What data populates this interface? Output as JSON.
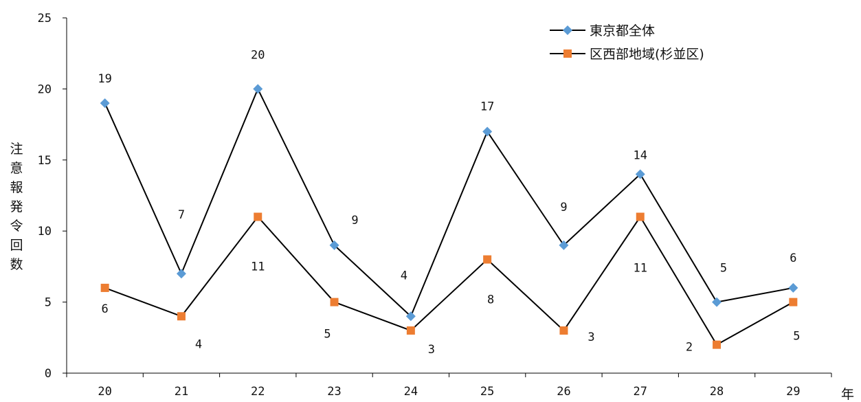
{
  "chart_data": {
    "type": "line",
    "title": "",
    "xlabel": "",
    "x_unit": "年",
    "ylabel": "注意報発令回数",
    "ylim": [
      0,
      25
    ],
    "yticks": [
      0,
      5,
      10,
      15,
      20,
      25
    ],
    "grid": false,
    "legend_position": "top-right",
    "categories": [
      "20",
      "21",
      "22",
      "23",
      "24",
      "25",
      "26",
      "27",
      "28",
      "29"
    ],
    "series": [
      {
        "name": "東京都全体",
        "values": [
          19,
          7,
          20,
          9,
          4,
          17,
          9,
          14,
          5,
          6
        ],
        "marker": "diamond",
        "marker_color": "#5B9BD5",
        "line_color": "#000000",
        "label_position": "above"
      },
      {
        "name": "区西部地域(杉並区)",
        "values": [
          6,
          4,
          11,
          5,
          3,
          8,
          3,
          11,
          2,
          5
        ],
        "marker": "square",
        "marker_color": "#ED7D31",
        "line_color": "#000000",
        "label_position": "below"
      }
    ]
  }
}
